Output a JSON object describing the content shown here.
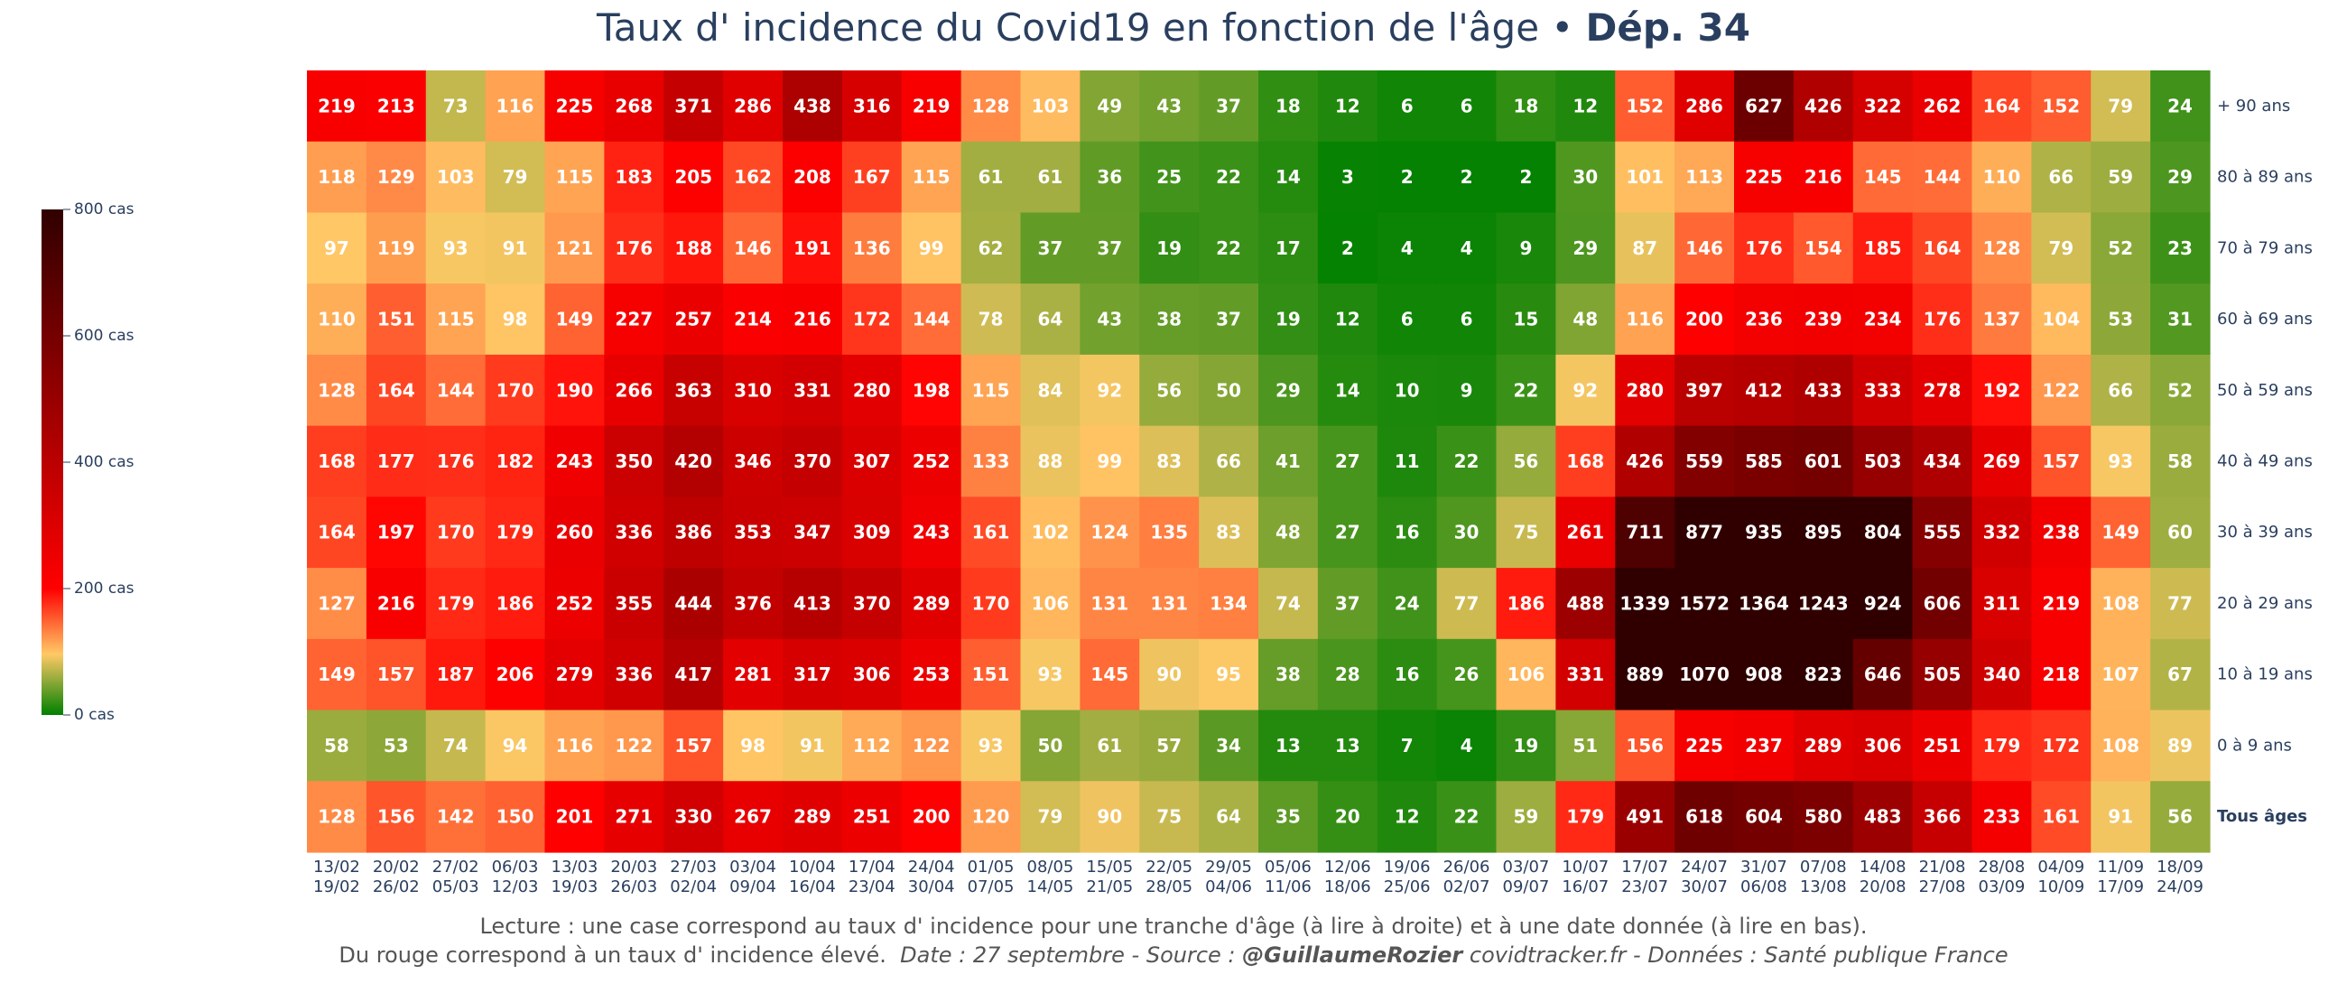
{
  "title_main": "Taux d' incidence du Covid19 en fonction de l'âge",
  "title_sep": "•",
  "title_dep": "Dép. 34",
  "footer": {
    "line1": "Lecture : une case correspond au taux d' incidence pour une tranche d'âge (à lire à droite) et à une date donnée (à lire en bas).",
    "line2_a": "Du rouge correspond à un taux d' incidence élevé.",
    "line2_b": "Date : 27 septembre - Source :",
    "line2_author": "@GuillaumeRozier",
    "line2_c": "covidtracker.fr - Données : Santé publique France"
  },
  "colors": {
    "scale": [
      "#008000",
      "#ffc966",
      "#ff0000",
      "#300000"
    ],
    "cell_text": "#ffffff",
    "label_text": "#2a3f5f"
  },
  "chart_data": {
    "type": "heatmap",
    "title": "Taux d' incidence du Covid19 en fonction de l'âge • Dép. 34",
    "x_start": [
      "13/02",
      "20/02",
      "27/02",
      "06/03",
      "13/03",
      "20/03",
      "27/03",
      "03/04",
      "10/04",
      "17/04",
      "24/04",
      "01/05",
      "08/05",
      "15/05",
      "22/05",
      "29/05",
      "05/06",
      "12/06",
      "19/06",
      "26/06",
      "03/07",
      "10/07",
      "17/07",
      "24/07",
      "31/07",
      "07/08",
      "14/08",
      "21/08",
      "28/08",
      "04/09",
      "11/09",
      "18/09"
    ],
    "x_end": [
      "19/02",
      "26/02",
      "05/03",
      "12/03",
      "19/03",
      "26/03",
      "02/04",
      "09/04",
      "16/04",
      "23/04",
      "30/04",
      "07/05",
      "14/05",
      "21/05",
      "28/05",
      "04/06",
      "11/06",
      "18/06",
      "25/06",
      "02/07",
      "09/07",
      "16/07",
      "23/07",
      "30/07",
      "06/08",
      "13/08",
      "20/08",
      "27/08",
      "03/09",
      "10/09",
      "17/09",
      "24/09"
    ],
    "rows": [
      "+ 90 ans",
      "80 à 89 ans",
      "70 à 79 ans",
      "60 à 69 ans",
      "50 à 59 ans",
      "40 à 49 ans",
      "30 à 39 ans",
      "20 à 29 ans",
      "10 à 19 ans",
      "0 à 9 ans",
      "Tous âges"
    ],
    "bold_row": "Tous âges",
    "values": [
      [
        219,
        213,
        73,
        116,
        225,
        268,
        371,
        286,
        438,
        316,
        219,
        128,
        103,
        49,
        43,
        37,
        18,
        12,
        6,
        6,
        18,
        12,
        152,
        286,
        627,
        426,
        322,
        262,
        164,
        152,
        79,
        24
      ],
      [
        118,
        129,
        103,
        79,
        115,
        183,
        205,
        162,
        208,
        167,
        115,
        61,
        61,
        36,
        25,
        22,
        14,
        3,
        2,
        2,
        2,
        30,
        101,
        113,
        225,
        216,
        145,
        144,
        110,
        66,
        59,
        29
      ],
      [
        97,
        119,
        93,
        91,
        121,
        176,
        188,
        146,
        191,
        136,
        99,
        62,
        37,
        37,
        19,
        22,
        17,
        2,
        4,
        4,
        9,
        29,
        87,
        146,
        176,
        154,
        185,
        164,
        128,
        79,
        52,
        23
      ],
      [
        110,
        151,
        115,
        98,
        149,
        227,
        257,
        214,
        216,
        172,
        144,
        78,
        64,
        43,
        38,
        37,
        19,
        12,
        6,
        6,
        15,
        48,
        116,
        200,
        236,
        239,
        234,
        176,
        137,
        104,
        53,
        31
      ],
      [
        128,
        164,
        144,
        170,
        190,
        266,
        363,
        310,
        331,
        280,
        198,
        115,
        84,
        92,
        56,
        50,
        29,
        14,
        10,
        9,
        22,
        92,
        280,
        397,
        412,
        433,
        333,
        278,
        192,
        122,
        66,
        52
      ],
      [
        168,
        177,
        176,
        182,
        243,
        350,
        420,
        346,
        370,
        307,
        252,
        133,
        88,
        99,
        83,
        66,
        41,
        27,
        11,
        22,
        56,
        168,
        426,
        559,
        585,
        601,
        503,
        434,
        269,
        157,
        93,
        58
      ],
      [
        164,
        197,
        170,
        179,
        260,
        336,
        386,
        353,
        347,
        309,
        243,
        161,
        102,
        124,
        135,
        83,
        48,
        27,
        16,
        30,
        75,
        261,
        711,
        877,
        935,
        895,
        804,
        555,
        332,
        238,
        149,
        60
      ],
      [
        127,
        216,
        179,
        186,
        252,
        355,
        444,
        376,
        413,
        370,
        289,
        170,
        106,
        131,
        131,
        134,
        74,
        37,
        24,
        77,
        186,
        488,
        1339,
        1572,
        1364,
        1243,
        924,
        606,
        311,
        219,
        108,
        77
      ],
      [
        149,
        157,
        187,
        206,
        279,
        336,
        417,
        281,
        317,
        306,
        253,
        151,
        93,
        145,
        90,
        95,
        38,
        28,
        16,
        26,
        106,
        331,
        889,
        1070,
        908,
        823,
        646,
        505,
        340,
        218,
        107,
        67
      ],
      [
        58,
        53,
        74,
        94,
        116,
        122,
        157,
        98,
        91,
        112,
        122,
        93,
        50,
        61,
        57,
        34,
        13,
        13,
        7,
        4,
        19,
        51,
        156,
        225,
        237,
        289,
        306,
        251,
        179,
        172,
        108,
        89
      ],
      [
        128,
        156,
        142,
        150,
        201,
        271,
        330,
        267,
        289,
        251,
        200,
        120,
        79,
        90,
        75,
        64,
        35,
        20,
        12,
        22,
        59,
        179,
        491,
        618,
        604,
        580,
        483,
        366,
        233,
        161,
        91,
        56
      ]
    ],
    "zmin": 0,
    "zmax": 800,
    "colorbar_ticks": [
      "0 cas",
      "200 cas",
      "400 cas",
      "600 cas",
      "800 cas"
    ],
    "colorbar_tick_values": [
      0,
      200,
      400,
      600,
      800
    ]
  }
}
